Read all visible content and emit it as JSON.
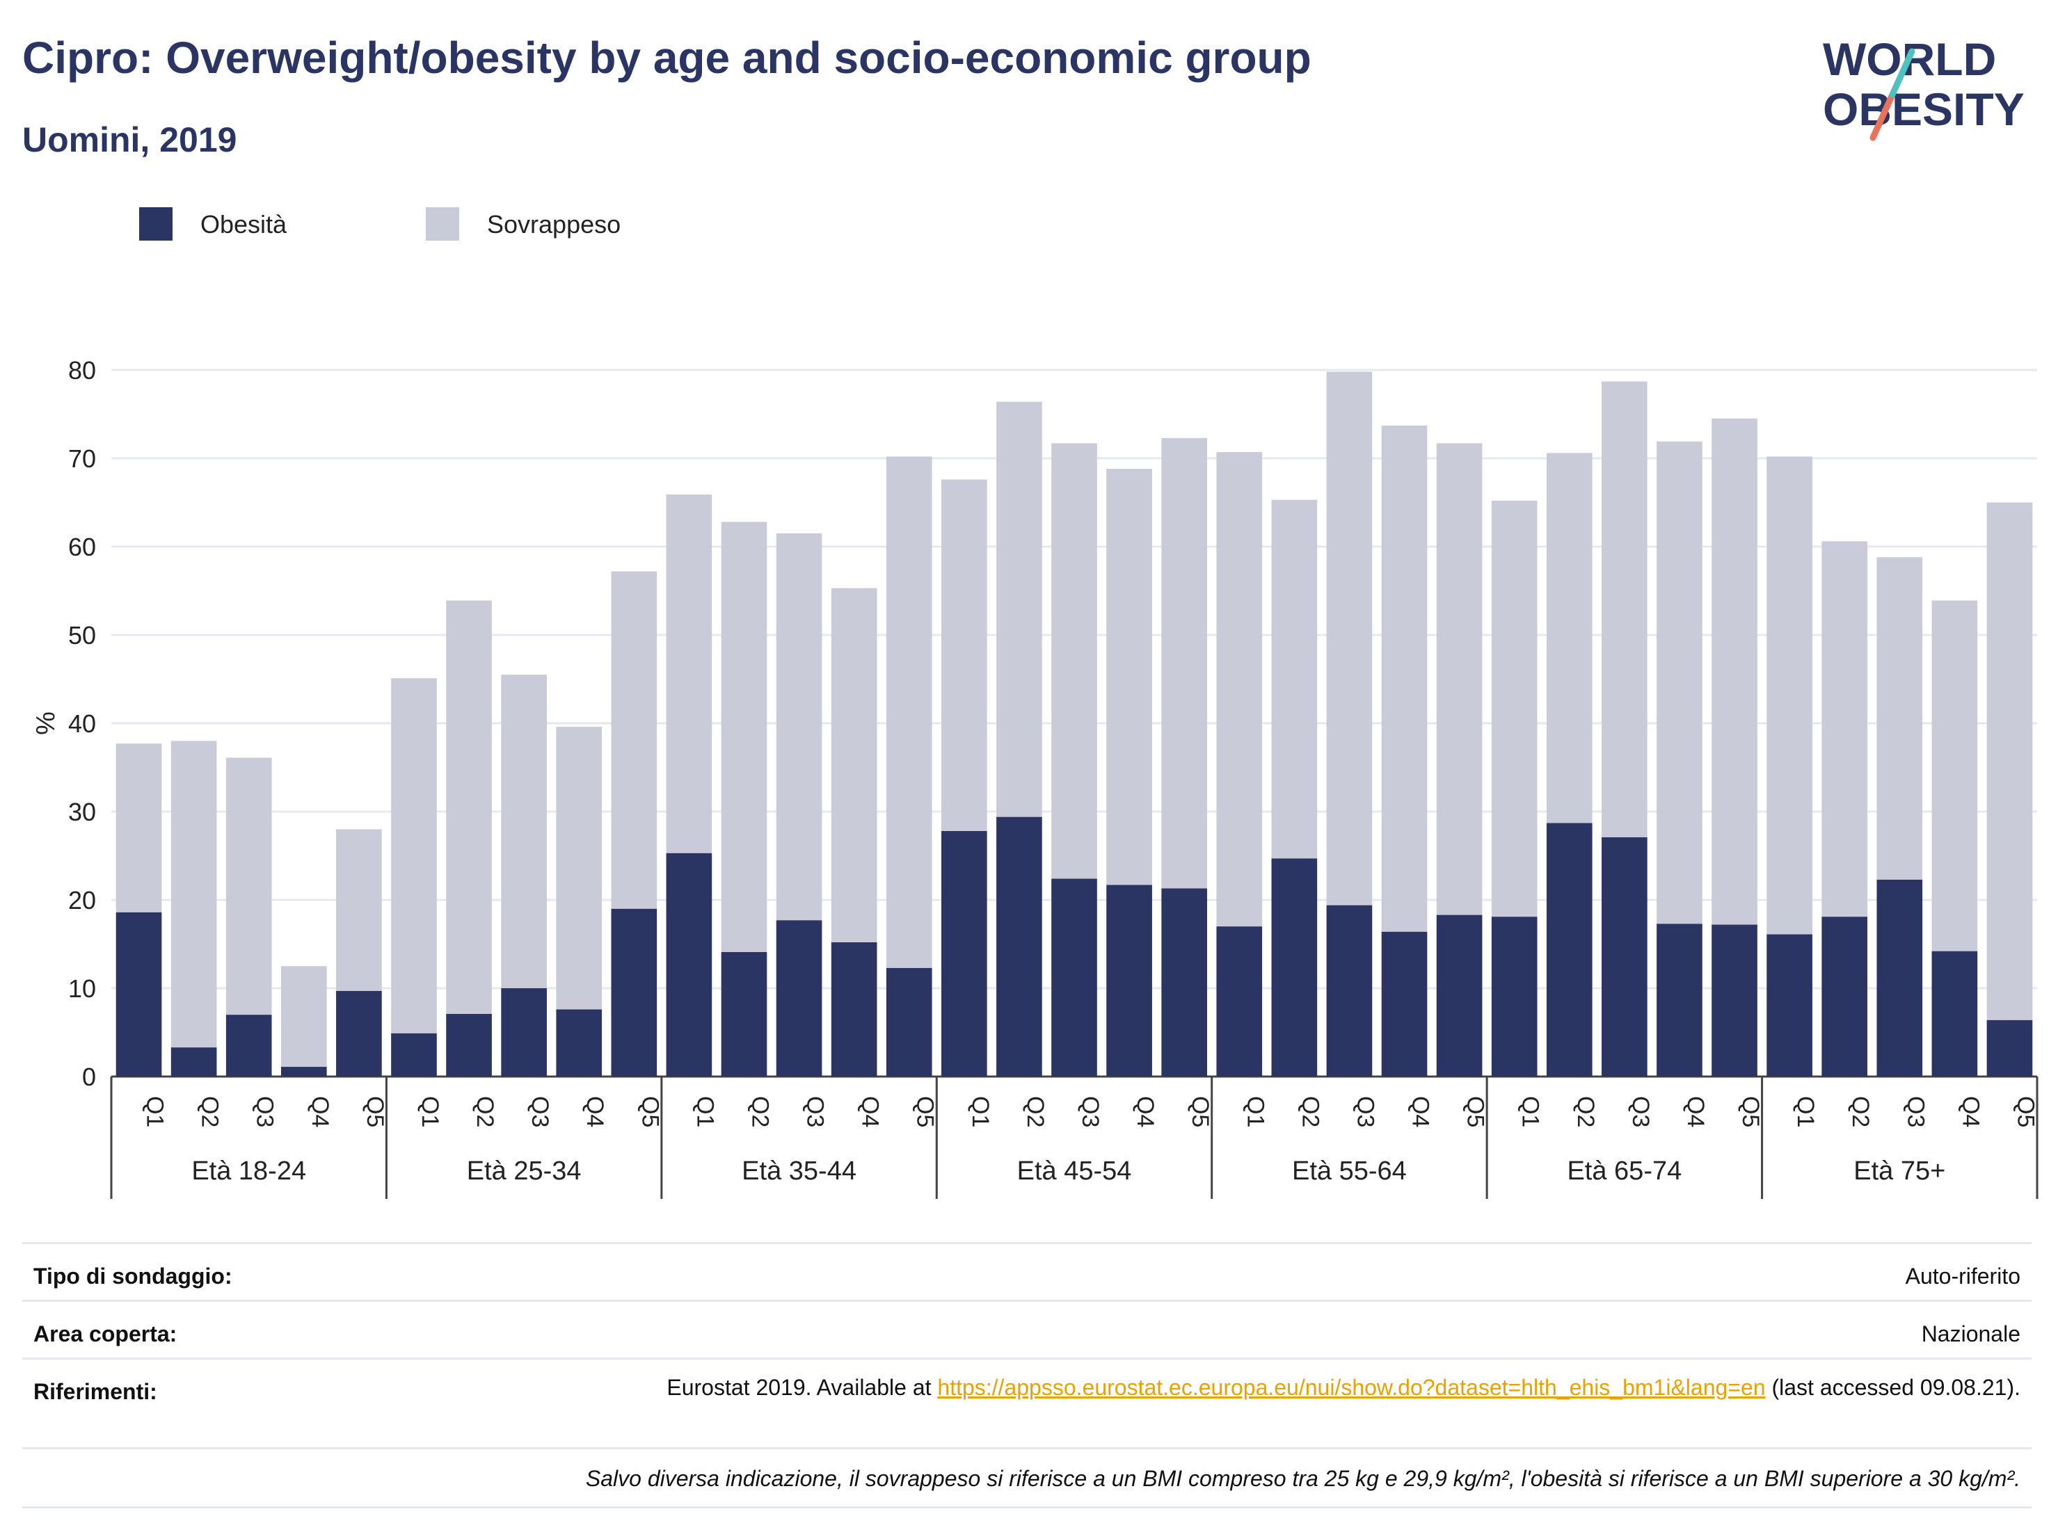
{
  "header": {
    "title": "Cipro: Overweight/obesity by age and socio-economic group",
    "subtitle": "Uomini, 2019"
  },
  "logo": {
    "line1": "WORLD",
    "line2": "OBESITY"
  },
  "legend": [
    {
      "label": "Obesità",
      "color": "#2a3563"
    },
    {
      "label": "Sovrappeso",
      "color": "#c9cbd8"
    }
  ],
  "chart_data": {
    "type": "bar",
    "stacked": true,
    "ylabel": "%",
    "ylim": [
      0,
      80
    ],
    "yticks": [
      0,
      10,
      20,
      30,
      40,
      50,
      60,
      70,
      80
    ],
    "grid": true,
    "legend_position": "top-left",
    "groups": [
      "Età 18-24",
      "Età 25-34",
      "Età 35-44",
      "Età 45-54",
      "Età 55-64",
      "Età 65-74",
      "Età 75+"
    ],
    "subcategories": [
      "Q1",
      "Q2",
      "Q3",
      "Q4",
      "Q5"
    ],
    "series": [
      {
        "name": "Obesità",
        "color": "#2a3563",
        "values": [
          18.6,
          3.3,
          7.0,
          1.1,
          9.7,
          4.9,
          7.1,
          10.0,
          7.6,
          19.0,
          25.3,
          14.1,
          17.7,
          15.2,
          12.3,
          27.8,
          29.4,
          22.4,
          21.7,
          21.3,
          17.0,
          24.7,
          19.4,
          16.4,
          18.3,
          18.1,
          28.7,
          27.1,
          17.3,
          17.2,
          16.1,
          18.1,
          22.3,
          14.2,
          6.4
        ]
      },
      {
        "name": "Sovrappeso",
        "color": "#c9cbd8",
        "values": [
          19.1,
          34.7,
          29.1,
          11.4,
          18.3,
          40.2,
          46.8,
          35.5,
          32.0,
          38.2,
          40.6,
          48.7,
          43.8,
          40.1,
          57.9,
          39.8,
          47.0,
          49.3,
          47.1,
          51.0,
          53.7,
          40.6,
          60.4,
          57.3,
          53.4,
          47.1,
          41.9,
          51.6,
          54.6,
          57.3,
          54.1,
          42.5,
          36.5,
          39.7,
          58.6
        ]
      }
    ]
  },
  "info": {
    "survey_label": "Tipo di sondaggio:",
    "survey_value": "Auto-riferito",
    "area_label": "Area coperta:",
    "area_value": "Nazionale",
    "ref_label": "Riferimenti:",
    "ref_prefix": "Eurostat 2019. Available at ",
    "ref_link": "https://appsso.eurostat.ec.europa.eu/nui/show.do?dataset=hlth_ehis_bm1i&lang=en",
    "ref_suffix": " (last accessed 09.08.21).",
    "note": "Salvo diversa indicazione, il sovrappeso si riferisce a un BMI compreso tra 25 kg e 29,9 kg/m², l'obesità si riferisce a un BMI superiore a 30 kg/m²."
  }
}
